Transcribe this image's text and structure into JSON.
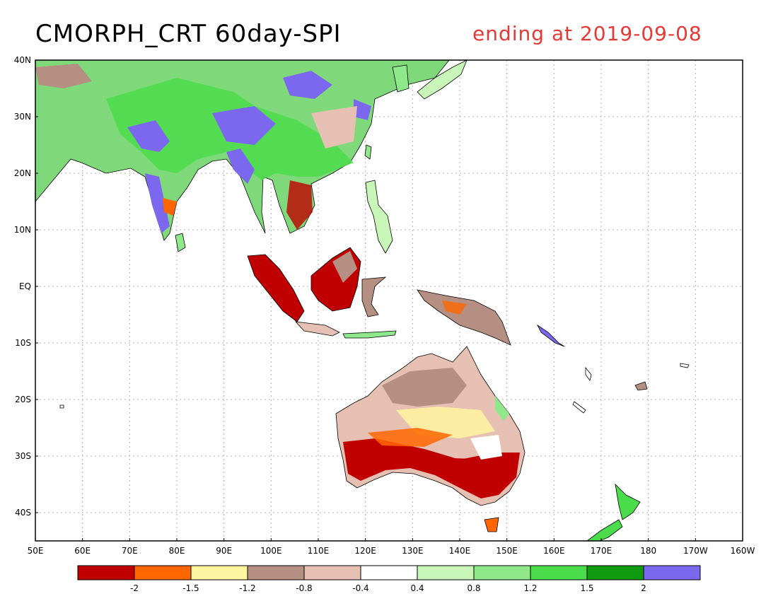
{
  "title": "CMORPH_CRT 60day-SPI",
  "subtitle": "ending at 2019-09-08",
  "lat_labels": [
    "40N",
    "30N",
    "20N",
    "10N",
    "EQ",
    "10S",
    "20S",
    "30S",
    "40S"
  ],
  "lon_labels": [
    "50E",
    "60E",
    "70E",
    "80E",
    "90E",
    "100E",
    "110E",
    "120E",
    "130E",
    "140E",
    "150E",
    "160E",
    "170E",
    "180",
    "170W",
    "160W"
  ],
  "legend": {
    "colors": [
      "#c00000",
      "#ff6600",
      "#fff5a0",
      "#b58f82",
      "#e6c0b3",
      "#ffffff",
      "#c8f5b8",
      "#8fe88a",
      "#4bdc4b",
      "#0f9a0f",
      "#7b68ee"
    ],
    "labels": [
      "-2",
      "-1.5",
      "-1.2",
      "-0.8",
      "-0.4",
      "0.4",
      "0.8",
      "1.2",
      "1.5",
      "2"
    ]
  }
}
